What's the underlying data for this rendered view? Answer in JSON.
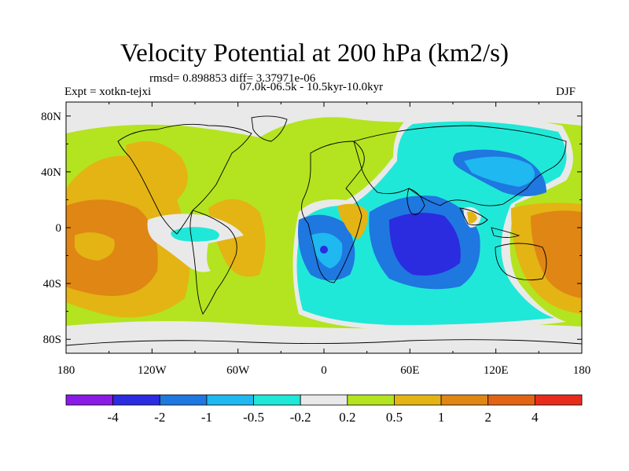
{
  "title": "Velocity Potential at 200 hPa (km2/s)",
  "stats": "rmsd= 0.898853 diff= 3.37971e-06",
  "expt": "Expt = xotkn-tejxi",
  "period": "07.0k-06.5k - 10.5kyr-10.0kyr",
  "season": "DJF",
  "lat_labels": [
    "80N",
    "40N",
    "0",
    "40S",
    "80S"
  ],
  "lon_labels": [
    "180",
    "120W",
    "60W",
    "0",
    "60E",
    "120E",
    "180"
  ],
  "colorbar": {
    "colors": [
      "#8a1be6",
      "#2b2be0",
      "#1f77e0",
      "#1fb8f0",
      "#20e8d8",
      "#e9e9e9",
      "#b3e41f",
      "#e3b414",
      "#e08614",
      "#e06414",
      "#e82c1c"
    ],
    "labels": [
      "-4",
      "-2",
      "-1",
      "-0.5",
      "-0.2",
      "0.2",
      "0.5",
      "1",
      "2",
      "4"
    ]
  },
  "chart_data": {
    "type": "heatmap",
    "title": "Velocity Potential at 200 hPa (km2/s)",
    "projection": "cylindrical equidistant",
    "xlim": [
      -180,
      180
    ],
    "ylim": [
      -90,
      90
    ],
    "x_ticks": [
      -180,
      -120,
      -60,
      0,
      60,
      120,
      180
    ],
    "y_ticks": [
      80,
      40,
      0,
      -40,
      -80
    ],
    "contour_levels": [
      -4,
      -2,
      -1,
      -0.5,
      -0.2,
      0.2,
      0.5,
      1,
      2,
      4
    ],
    "regions": [
      {
        "level": "0.2 to 0.5",
        "lon": [
          -180,
          180
        ],
        "lat": [
          -90,
          90
        ]
      },
      {
        "level": "0.5 to 1",
        "lon": [
          -180,
          -100
        ],
        "lat": [
          -50,
          55
        ]
      },
      {
        "level": "1 to 2",
        "lon": [
          -180,
          -120
        ],
        "lat": [
          -45,
          20
        ]
      },
      {
        "level": "0.5 to 1",
        "lon": [
          -115,
          -20
        ],
        "lat": [
          -50,
          40
        ]
      },
      {
        "level": "-0.2 to 0.2",
        "lon": [
          -118,
          -80
        ],
        "lat": [
          -20,
          8
        ]
      },
      {
        "level": "-0.5 to -0.2",
        "lon": [
          -105,
          -88
        ],
        "lat": [
          -10,
          2
        ]
      },
      {
        "level": "-0.2 to 0.2",
        "lon": [
          -15,
          135
        ],
        "lat": [
          -45,
          85
        ]
      },
      {
        "level": "-0.2 to 0.2",
        "lon": [
          -180,
          180
        ],
        "lat": [
          -90,
          -65
        ]
      },
      {
        "level": "-0.5 to -0.2",
        "lon": [
          -15,
          135
        ],
        "lat": [
          -65,
          85
        ]
      },
      {
        "level": "-1 to -0.5",
        "lon": [
          -10,
          110
        ],
        "lat": [
          -40,
          10
        ]
      },
      {
        "level": "-1 to -0.5",
        "lon": [
          70,
          125
        ],
        "lat": [
          20,
          55
        ]
      },
      {
        "level": "-2 to -1",
        "lon": [
          45,
          105
        ],
        "lat": [
          -28,
          8
        ]
      },
      {
        "level": "-4 to -2",
        "lon": [
          -2,
          2
        ],
        "lat": [
          -12,
          -8
        ]
      },
      {
        "level": "0.5 to 1",
        "lon": [
          120,
          180
        ],
        "lat": [
          -50,
          30
        ]
      },
      {
        "level": "1 to 2",
        "lon": [
          135,
          180
        ],
        "lat": [
          -40,
          18
        ]
      }
    ]
  }
}
